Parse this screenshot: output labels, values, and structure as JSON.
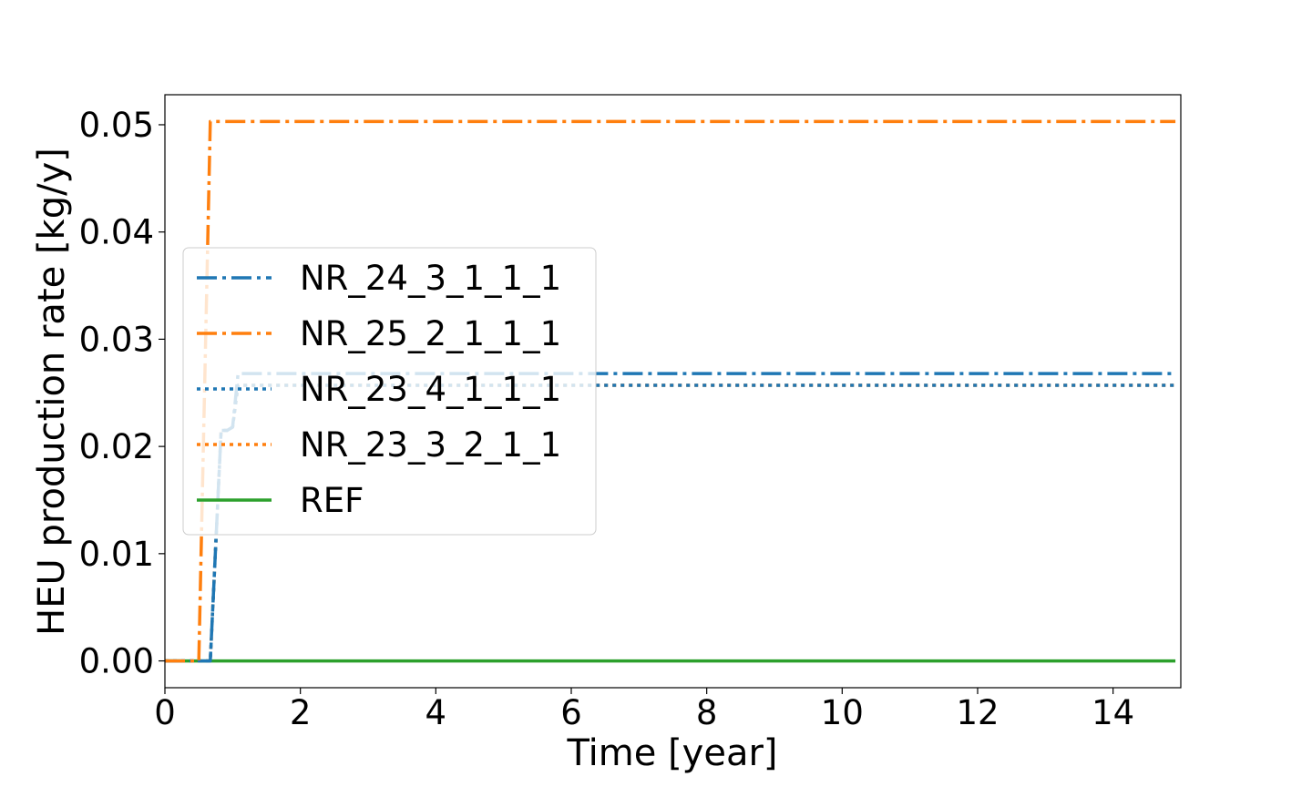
{
  "chart_data": {
    "type": "line",
    "xlabel": "Time [year]",
    "ylabel": "HEU production rate [kg/y]",
    "xlim": [
      0,
      15
    ],
    "ylim": [
      -0.0025,
      0.0528
    ],
    "xticks": [
      "0",
      "2",
      "4",
      "6",
      "8",
      "10",
      "12",
      "14"
    ],
    "yticks": [
      "0.00",
      "0.01",
      "0.02",
      "0.03",
      "0.04",
      "0.05"
    ],
    "grid": false,
    "legend_position": "center-left",
    "series": [
      {
        "name": "NR_24_3_1_1_1",
        "color": "#1f77b4",
        "dash": "dashdot",
        "x": [
          0,
          0.67,
          0.83,
          0.92,
          1.0,
          1.08,
          1.17,
          14.92
        ],
        "y": [
          0,
          0,
          0.0215,
          0.0215,
          0.0218,
          0.0268,
          0.0268,
          0.0268
        ]
      },
      {
        "name": "NR_25_2_1_1_1",
        "color": "#ff7f0e",
        "dash": "dashdot",
        "x": [
          0,
          0.5,
          0.67,
          14.92
        ],
        "y": [
          0,
          0,
          0.0503,
          0.0503
        ]
      },
      {
        "name": "NR_23_4_1_1_1",
        "color": "#1f77b4",
        "dash": "dotted",
        "x": [
          0,
          0.67,
          0.83,
          0.92,
          1.0,
          1.08,
          1.17,
          14.92
        ],
        "y": [
          0,
          0,
          0.0215,
          0.0215,
          0.0218,
          0.0257,
          0.0257,
          0.0257
        ]
      },
      {
        "name": "NR_23_3_2_1_1",
        "color": "#ff7f0e",
        "dash": "dotted",
        "x": [
          0,
          0.67,
          0.83,
          0.92,
          1.0,
          1.08,
          1.17,
          14.92
        ],
        "y": [
          0,
          0,
          0.0215,
          0.0215,
          0.0218,
          0.0257,
          0.0257,
          0.0257
        ]
      },
      {
        "name": "REF",
        "color": "#2ca02c",
        "dash": "solid",
        "x": [
          0,
          14.92
        ],
        "y": [
          0,
          0
        ]
      }
    ]
  }
}
